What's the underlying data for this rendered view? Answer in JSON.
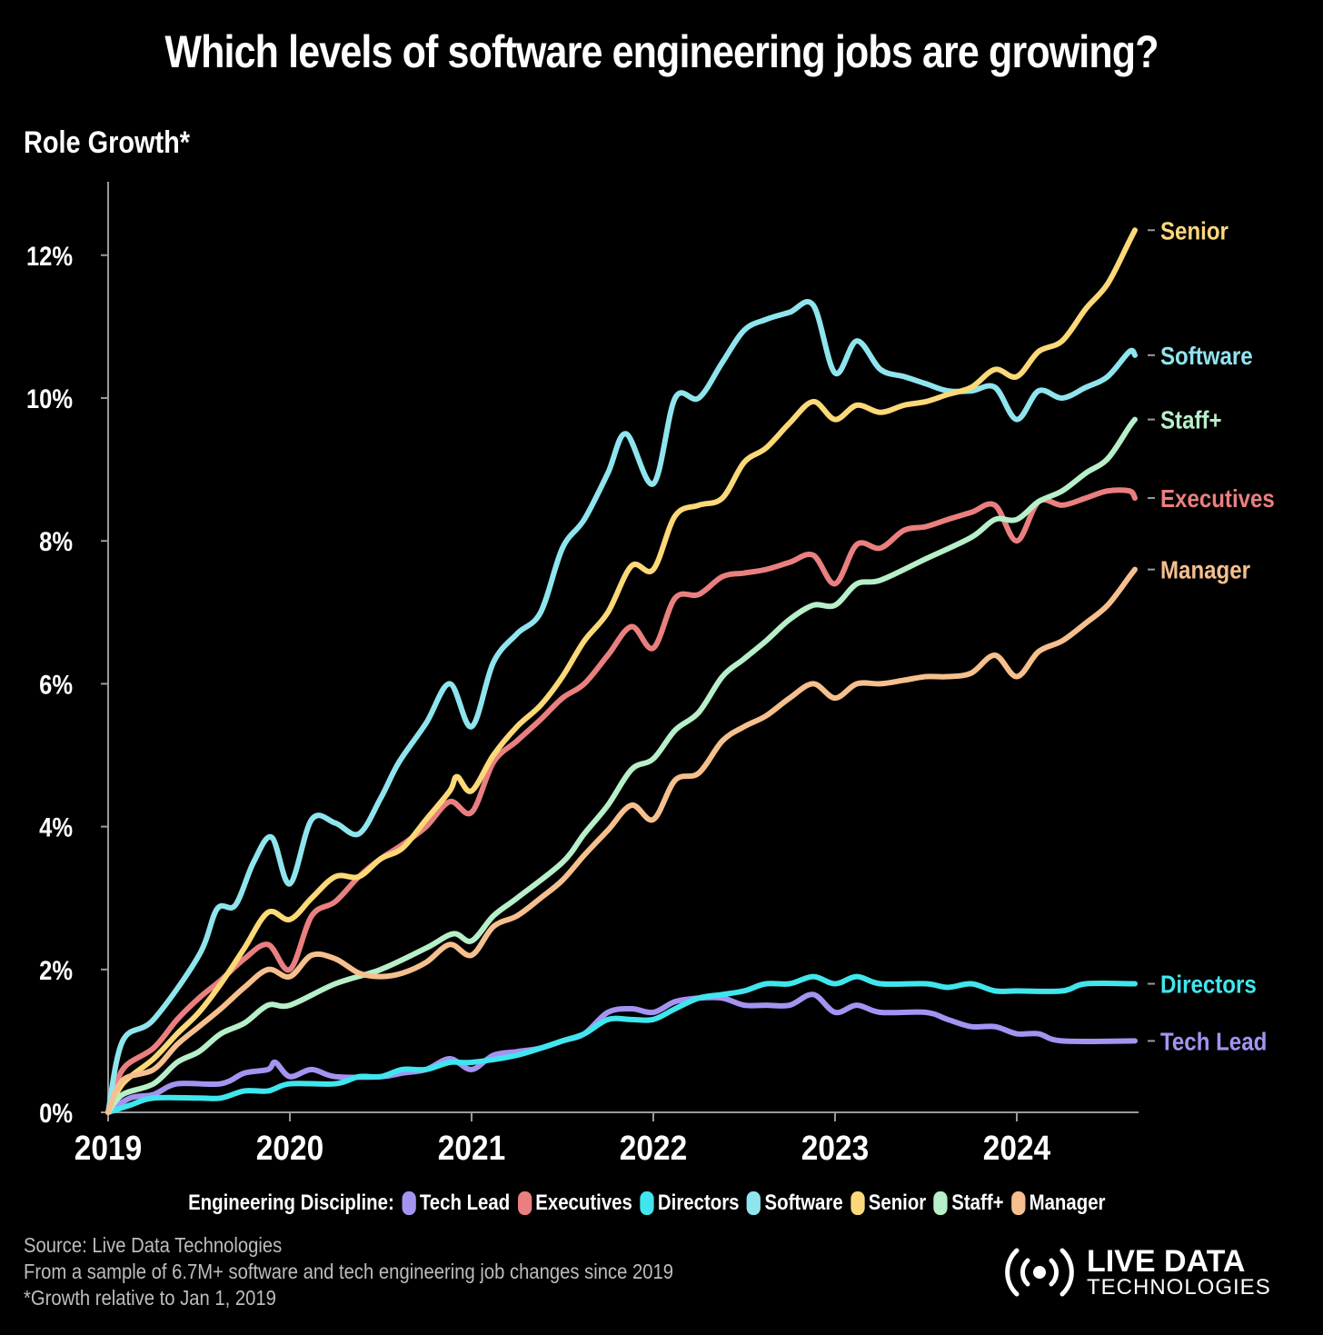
{
  "chart_data": {
    "type": "line",
    "title": "Which levels of software engineering jobs are growing?",
    "ylabel": "Role Growth*",
    "xlabel": "",
    "xlim": [
      2019,
      2024.7
    ],
    "ylim": [
      0,
      13
    ],
    "x_ticks": [
      "2019",
      "2020",
      "2021",
      "2022",
      "2023",
      "2024"
    ],
    "y_ticks": [
      "0%",
      "2%",
      "4%",
      "6%",
      "8%",
      "10%",
      "12%"
    ],
    "grid": false,
    "legend_title": "Engineering Discipline:",
    "legend_placement": "bottom",
    "series": [
      {
        "name": "Tech Lead",
        "color": "#a593f2",
        "x": [
          2019,
          2019.12,
          2019.25,
          2019.38,
          2019.62,
          2019.75,
          2019.88,
          2019.92,
          2020,
          2020.12,
          2020.25,
          2020.5,
          2020.62,
          2020.75,
          2020.88,
          2021,
          2021.12,
          2021.25,
          2021.38,
          2021.5,
          2021.62,
          2021.75,
          2021.88,
          2022,
          2022.12,
          2022.25,
          2022.38,
          2022.5,
          2022.62,
          2022.75,
          2022.88,
          2023,
          2023.12,
          2023.25,
          2023.5,
          2023.62,
          2023.75,
          2023.88,
          2024,
          2024.12,
          2024.25,
          2024.65
        ],
        "y": [
          0,
          0.2,
          0.25,
          0.4,
          0.4,
          0.55,
          0.6,
          0.7,
          0.5,
          0.6,
          0.5,
          0.5,
          0.55,
          0.6,
          0.75,
          0.6,
          0.8,
          0.85,
          0.9,
          1.0,
          1.1,
          1.4,
          1.45,
          1.4,
          1.55,
          1.6,
          1.6,
          1.5,
          1.5,
          1.5,
          1.65,
          1.4,
          1.5,
          1.4,
          1.4,
          1.3,
          1.2,
          1.2,
          1.1,
          1.1,
          1.0,
          1.0
        ]
      },
      {
        "name": "Executives",
        "color": "#ea7f7f",
        "x": [
          2019,
          2019.08,
          2019.25,
          2019.38,
          2019.5,
          2019.62,
          2019.75,
          2019.88,
          2020,
          2020.12,
          2020.25,
          2020.38,
          2020.5,
          2020.62,
          2020.75,
          2020.88,
          2021,
          2021.12,
          2021.25,
          2021.38,
          2021.5,
          2021.62,
          2021.75,
          2021.88,
          2022,
          2022.12,
          2022.25,
          2022.38,
          2022.5,
          2022.62,
          2022.75,
          2022.88,
          2023,
          2023.12,
          2023.25,
          2023.38,
          2023.5,
          2023.62,
          2023.75,
          2023.88,
          2024,
          2024.12,
          2024.25,
          2024.38,
          2024.5,
          2024.62,
          2024.65
        ],
        "y": [
          0,
          0.6,
          0.9,
          1.3,
          1.6,
          1.85,
          2.15,
          2.35,
          2.0,
          2.75,
          2.95,
          3.3,
          3.55,
          3.75,
          4.0,
          4.35,
          4.2,
          4.9,
          5.2,
          5.5,
          5.8,
          6.0,
          6.4,
          6.8,
          6.5,
          7.2,
          7.25,
          7.5,
          7.55,
          7.6,
          7.7,
          7.8,
          7.4,
          7.95,
          7.9,
          8.15,
          8.2,
          8.3,
          8.4,
          8.5,
          8.0,
          8.55,
          8.5,
          8.6,
          8.7,
          8.7,
          8.6
        ]
      },
      {
        "name": "Directors",
        "color": "#40e6ee",
        "x": [
          2019,
          2019.12,
          2019.25,
          2019.5,
          2019.62,
          2019.75,
          2019.88,
          2020,
          2020.25,
          2020.38,
          2020.5,
          2020.62,
          2020.75,
          2020.88,
          2021,
          2021.25,
          2021.5,
          2021.62,
          2021.75,
          2021.88,
          2022,
          2022.12,
          2022.25,
          2022.38,
          2022.5,
          2022.62,
          2022.75,
          2022.88,
          2023,
          2023.12,
          2023.25,
          2023.5,
          2023.62,
          2023.75,
          2023.88,
          2024,
          2024.25,
          2024.38,
          2024.65
        ],
        "y": [
          0,
          0.1,
          0.2,
          0.2,
          0.2,
          0.3,
          0.3,
          0.4,
          0.4,
          0.5,
          0.5,
          0.6,
          0.6,
          0.7,
          0.7,
          0.8,
          1.0,
          1.1,
          1.3,
          1.3,
          1.3,
          1.45,
          1.6,
          1.65,
          1.7,
          1.8,
          1.8,
          1.9,
          1.8,
          1.9,
          1.8,
          1.8,
          1.75,
          1.8,
          1.7,
          1.7,
          1.7,
          1.8,
          1.8
        ]
      },
      {
        "name": "Software",
        "color": "#8fe5ee",
        "x": [
          2019,
          2019.08,
          2019.25,
          2019.5,
          2019.6,
          2019.7,
          2019.8,
          2019.9,
          2020,
          2020.12,
          2020.25,
          2020.38,
          2020.5,
          2020.6,
          2020.75,
          2020.88,
          2021,
          2021.12,
          2021.25,
          2021.38,
          2021.5,
          2021.62,
          2021.75,
          2021.85,
          2022,
          2022.12,
          2022.25,
          2022.38,
          2022.5,
          2022.62,
          2022.75,
          2022.88,
          2023,
          2023.12,
          2023.25,
          2023.38,
          2023.5,
          2023.62,
          2023.75,
          2023.88,
          2024,
          2024.12,
          2024.25,
          2024.38,
          2024.5,
          2024.62,
          2024.65
        ],
        "y": [
          0,
          1.0,
          1.3,
          2.2,
          2.85,
          2.9,
          3.5,
          3.85,
          3.2,
          4.1,
          4.05,
          3.9,
          4.4,
          4.9,
          5.45,
          6.0,
          5.4,
          6.3,
          6.7,
          7.0,
          7.9,
          8.3,
          8.95,
          9.5,
          8.8,
          10.0,
          10.0,
          10.5,
          10.95,
          11.1,
          11.2,
          11.3,
          10.35,
          10.8,
          10.4,
          10.3,
          10.2,
          10.1,
          10.1,
          10.15,
          9.7,
          10.1,
          10.0,
          10.15,
          10.3,
          10.65,
          10.6
        ]
      },
      {
        "name": "Senior",
        "color": "#fcd978",
        "x": [
          2019,
          2019.08,
          2019.25,
          2019.38,
          2019.5,
          2019.62,
          2019.75,
          2019.88,
          2020,
          2020.12,
          2020.25,
          2020.38,
          2020.5,
          2020.62,
          2020.75,
          2020.88,
          2020.92,
          2021,
          2021.12,
          2021.25,
          2021.38,
          2021.5,
          2021.62,
          2021.75,
          2021.88,
          2022,
          2022.12,
          2022.25,
          2022.38,
          2022.5,
          2022.62,
          2022.75,
          2022.88,
          2023,
          2023.12,
          2023.25,
          2023.38,
          2023.5,
          2023.62,
          2023.75,
          2023.88,
          2024,
          2024.12,
          2024.25,
          2024.38,
          2024.5,
          2024.62,
          2024.65
        ],
        "y": [
          0,
          0.4,
          0.75,
          1.1,
          1.4,
          1.8,
          2.3,
          2.8,
          2.7,
          3.0,
          3.3,
          3.3,
          3.55,
          3.7,
          4.1,
          4.5,
          4.7,
          4.5,
          5.0,
          5.4,
          5.7,
          6.1,
          6.6,
          7.0,
          7.65,
          7.6,
          8.35,
          8.5,
          8.6,
          9.1,
          9.3,
          9.65,
          9.95,
          9.7,
          9.9,
          9.8,
          9.9,
          9.95,
          10.05,
          10.15,
          10.4,
          10.3,
          10.65,
          10.8,
          11.25,
          11.6,
          12.2,
          12.35
        ]
      },
      {
        "name": "Staff+",
        "color": "#b7efc9",
        "x": [
          2019,
          2019.08,
          2019.25,
          2019.38,
          2019.5,
          2019.62,
          2019.75,
          2019.88,
          2020,
          2020.25,
          2020.5,
          2020.75,
          2020.9,
          2021,
          2021.12,
          2021.25,
          2021.5,
          2021.62,
          2021.75,
          2021.88,
          2022,
          2022.12,
          2022.25,
          2022.38,
          2022.5,
          2022.62,
          2022.75,
          2022.88,
          2023,
          2023.12,
          2023.25,
          2023.5,
          2023.75,
          2023.88,
          2024,
          2024.12,
          2024.25,
          2024.38,
          2024.5,
          2024.62,
          2024.65
        ],
        "y": [
          0,
          0.25,
          0.4,
          0.7,
          0.85,
          1.1,
          1.25,
          1.5,
          1.5,
          1.8,
          2.0,
          2.3,
          2.5,
          2.4,
          2.75,
          3.0,
          3.5,
          3.9,
          4.3,
          4.8,
          4.95,
          5.35,
          5.6,
          6.1,
          6.35,
          6.6,
          6.9,
          7.1,
          7.1,
          7.4,
          7.45,
          7.75,
          8.05,
          8.3,
          8.3,
          8.55,
          8.7,
          8.95,
          9.15,
          9.6,
          9.7
        ]
      },
      {
        "name": "Manager",
        "color": "#f6c08e",
        "x": [
          2019,
          2019.08,
          2019.25,
          2019.38,
          2019.5,
          2019.62,
          2019.75,
          2019.88,
          2020,
          2020.12,
          2020.25,
          2020.38,
          2020.5,
          2020.62,
          2020.75,
          2020.88,
          2021,
          2021.12,
          2021.25,
          2021.38,
          2021.5,
          2021.62,
          2021.75,
          2021.88,
          2022,
          2022.12,
          2022.25,
          2022.38,
          2022.5,
          2022.62,
          2022.75,
          2022.88,
          2023,
          2023.12,
          2023.25,
          2023.38,
          2023.5,
          2023.62,
          2023.75,
          2023.88,
          2024,
          2024.12,
          2024.25,
          2024.38,
          2024.5,
          2024.62,
          2024.65
        ],
        "y": [
          0,
          0.45,
          0.6,
          0.95,
          1.2,
          1.45,
          1.75,
          2.0,
          1.9,
          2.2,
          2.15,
          1.95,
          1.9,
          1.95,
          2.1,
          2.35,
          2.2,
          2.6,
          2.75,
          3.0,
          3.25,
          3.6,
          3.95,
          4.3,
          4.1,
          4.65,
          4.75,
          5.2,
          5.4,
          5.55,
          5.8,
          6.0,
          5.8,
          6.0,
          6.0,
          6.05,
          6.1,
          6.1,
          6.15,
          6.4,
          6.1,
          6.45,
          6.6,
          6.85,
          7.1,
          7.5,
          7.6
        ]
      }
    ]
  },
  "footer": {
    "source": "Source: Live Data Technologies",
    "sample": "From a sample of 6.7M+ software and tech engineering job changes since 2019",
    "note": "*Growth relative to Jan 1, 2019"
  },
  "logo": {
    "line1": "LIVE DATA",
    "line2": "TECHNOLOGIES",
    "icon": "broadcast-signal-icon"
  },
  "colors": {
    "background": "#000000",
    "axis": "#9a9a9a"
  }
}
